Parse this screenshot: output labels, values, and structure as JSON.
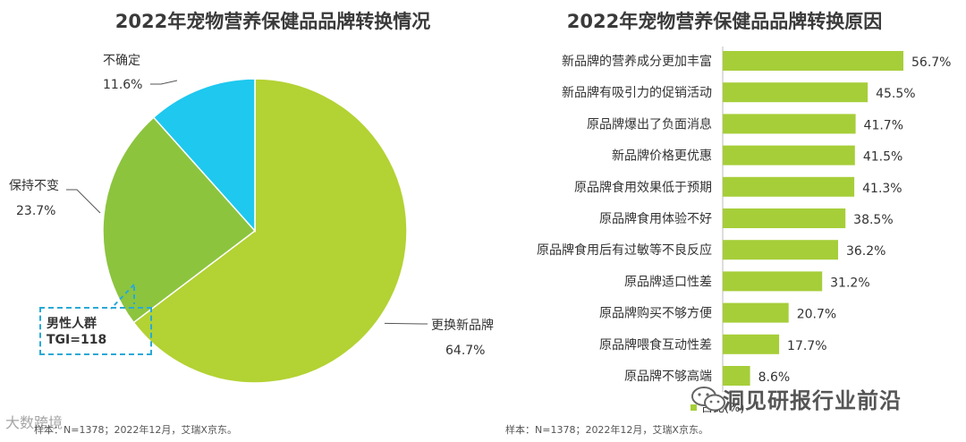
{
  "pie_title": "2022年宠物营养保健品品牌转换情况",
  "bar_title": "2022年宠物营养保健品品牌转换原因",
  "colors": {
    "pie_change": "#b3d233",
    "pie_keep": "#8cc43e",
    "pie_unsure": "#1ec8ef",
    "bar": "#a6ce39",
    "tgi_border": "#2aa9d6"
  },
  "tgi": {
    "line1": "男性人群",
    "line2": "TGI=118"
  },
  "footnote_left": "样本：N=1378；2022年12月，艾瑞X京东。",
  "footnote_right": "样本：N=1378；2022年12月，艾瑞X京东。",
  "legend_label": "占比(%)",
  "wechat_text": "洞见研报行业前沿",
  "watermark_left": "大数跨境",
  "chart_data": [
    {
      "type": "pie",
      "title": "2022年宠物营养保健品品牌转换情况",
      "slices": [
        {
          "label": "更换新品牌",
          "value": 64.7,
          "display": "64.7%"
        },
        {
          "label": "保持不变",
          "value": 23.7,
          "display": "23.7%"
        },
        {
          "label": "不确定",
          "value": 11.6,
          "display": "11.6%"
        }
      ]
    },
    {
      "type": "bar",
      "orientation": "horizontal",
      "title": "2022年宠物营养保健品品牌转换原因",
      "categories": [
        "新品牌的营养成分更加丰富",
        "新品牌有吸引力的促销活动",
        "原品牌爆出了负面消息",
        "新品牌价格更优惠",
        "原品牌食用效果低于预期",
        "原品牌食用体验不好",
        "原品牌食用后有过敏等不良反应",
        "原品牌适口性差",
        "原品牌购买不够方便",
        "原品牌喂食互动性差",
        "原品牌不够高端"
      ],
      "values": [
        56.7,
        45.5,
        41.7,
        41.5,
        41.3,
        38.5,
        36.2,
        31.2,
        20.7,
        17.7,
        8.6
      ],
      "value_labels": [
        "56.7%",
        "45.5%",
        "41.7%",
        "41.5%",
        "41.3%",
        "38.5%",
        "36.2%",
        "31.2%",
        "20.7%",
        "17.7%",
        "8.6%"
      ],
      "legend": "占比(%)"
    }
  ]
}
